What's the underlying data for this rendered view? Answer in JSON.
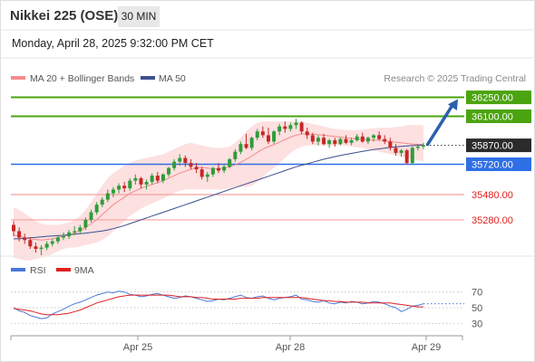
{
  "header": {
    "title": "Nikkei 225 (OSE)",
    "timeframe": "30 MIN",
    "datetime": "Monday, April 28, 2025 9:32:00 PM CET"
  },
  "legend": {
    "ma20_label": "MA 20 + Bollinger Bands",
    "ma50_label": "MA 50",
    "credit": "Research © 2025 Trading Central",
    "rsi_label": "RSI",
    "rsi_ma_label": "9MA"
  },
  "colors": {
    "ma20": "#f28b8b",
    "bands": "#fde0e0",
    "ma50": "#3d4f8f",
    "resistance": "#4ba40f",
    "pivot": "#2f6fe6",
    "support": "#f4a0a0",
    "support_text": "#e0201f",
    "current": "#2b2b2b",
    "bull_candle": "#2e9d3a",
    "bear_candle": "#c62828",
    "arrow": "#2c5fae",
    "rsi": "#4a78d9",
    "rsi_ma": "#e02020"
  },
  "chart_data": [
    {
      "type": "candlestick",
      "title": "Nikkei 225 (OSE)",
      "interval": "30 MIN",
      "x_ticks": [
        "Apr 25",
        "Apr 28",
        "Apr 29"
      ],
      "ylim": [
        35000,
        36340
      ],
      "levels": [
        {
          "label": "36250.00",
          "value": 36250,
          "role": "resistance"
        },
        {
          "label": "36100.00",
          "value": 36100,
          "role": "resistance"
        },
        {
          "label": "35870.00",
          "value": 35870,
          "role": "current"
        },
        {
          "label": "35720.00",
          "value": 35720,
          "role": "pivot"
        },
        {
          "label": "35480.00",
          "value": 35480,
          "role": "support"
        },
        {
          "label": "35280.00",
          "value": 35280,
          "role": "support"
        }
      ],
      "candles": [
        [
          35240,
          35270,
          35150,
          35190
        ],
        [
          35190,
          35220,
          35110,
          35140
        ],
        [
          35140,
          35170,
          35090,
          35120
        ],
        [
          35120,
          35140,
          35050,
          35070
        ],
        [
          35070,
          35100,
          35020,
          35050
        ],
        [
          35050,
          35080,
          35000,
          35060
        ],
        [
          35060,
          35110,
          35040,
          35090
        ],
        [
          35090,
          35130,
          35070,
          35110
        ],
        [
          35110,
          35160,
          35090,
          35140
        ],
        [
          35140,
          35180,
          35120,
          35150
        ],
        [
          35150,
          35200,
          35130,
          35180
        ],
        [
          35180,
          35230,
          35160,
          35190
        ],
        [
          35190,
          35240,
          35170,
          35220
        ],
        [
          35220,
          35300,
          35200,
          35280
        ],
        [
          35280,
          35360,
          35260,
          35340
        ],
        [
          35340,
          35420,
          35320,
          35400
        ],
        [
          35400,
          35460,
          35380,
          35440
        ],
        [
          35440,
          35520,
          35420,
          35490
        ],
        [
          35490,
          35540,
          35460,
          35520
        ],
        [
          35520,
          35570,
          35490,
          35550
        ],
        [
          35550,
          35580,
          35500,
          35530
        ],
        [
          35530,
          35610,
          35510,
          35590
        ],
        [
          35590,
          35640,
          35560,
          35610
        ],
        [
          35610,
          35620,
          35530,
          35560
        ],
        [
          35560,
          35600,
          35520,
          35580
        ],
        [
          35580,
          35650,
          35560,
          35630
        ],
        [
          35630,
          35660,
          35570,
          35590
        ],
        [
          35590,
          35650,
          35570,
          35640
        ],
        [
          35640,
          35700,
          35620,
          35690
        ],
        [
          35690,
          35760,
          35670,
          35740
        ],
        [
          35740,
          35800,
          35710,
          35770
        ],
        [
          35770,
          35790,
          35700,
          35730
        ],
        [
          35730,
          35760,
          35680,
          35700
        ],
        [
          35700,
          35730,
          35650,
          35680
        ],
        [
          35680,
          35700,
          35600,
          35620
        ],
        [
          35620,
          35660,
          35580,
          35640
        ],
        [
          35640,
          35700,
          35620,
          35690
        ],
        [
          35690,
          35730,
          35650,
          35670
        ],
        [
          35670,
          35720,
          35650,
          35700
        ],
        [
          35700,
          35770,
          35690,
          35760
        ],
        [
          35760,
          35840,
          35740,
          35820
        ],
        [
          35820,
          35900,
          35800,
          35880
        ],
        [
          35880,
          35960,
          35840,
          35850
        ],
        [
          35850,
          35940,
          35830,
          35930
        ],
        [
          35930,
          36000,
          35910,
          35980
        ],
        [
          35980,
          36020,
          35930,
          35950
        ],
        [
          35950,
          36010,
          35880,
          35900
        ],
        [
          35900,
          35990,
          35880,
          35980
        ],
        [
          35980,
          36040,
          35950,
          36020
        ],
        [
          36020,
          36060,
          35970,
          36000
        ],
        [
          36000,
          36050,
          35980,
          36030
        ],
        [
          36030,
          36080,
          36000,
          36050
        ],
        [
          36050,
          36060,
          35960,
          35980
        ],
        [
          35980,
          36010,
          35920,
          35950
        ],
        [
          35950,
          35970,
          35880,
          35900
        ],
        [
          35900,
          35950,
          35870,
          35930
        ],
        [
          35930,
          35960,
          35870,
          35880
        ],
        [
          35880,
          35920,
          35850,
          35910
        ],
        [
          35910,
          35930,
          35860,
          35880
        ],
        [
          35880,
          35930,
          35870,
          35920
        ],
        [
          35920,
          35950,
          35880,
          35890
        ],
        [
          35890,
          35930,
          35870,
          35910
        ],
        [
          35910,
          35960,
          35900,
          35940
        ],
        [
          35940,
          35970,
          35890,
          35900
        ],
        [
          35900,
          35940,
          35880,
          35930
        ],
        [
          35930,
          35960,
          35900,
          35950
        ],
        [
          35950,
          35980,
          35910,
          35920
        ],
        [
          35920,
          35950,
          35880,
          35900
        ],
        [
          35900,
          35930,
          35830,
          35850
        ],
        [
          35850,
          35880,
          35790,
          35810
        ],
        [
          35810,
          35840,
          35780,
          35830
        ],
        [
          35830,
          35840,
          35720,
          35730
        ],
        [
          35730,
          35860,
          35720,
          35850
        ],
        [
          35850,
          35880,
          35830,
          35860
        ],
        [
          35860,
          35890,
          35840,
          35870
        ]
      ],
      "ma20": [
        35160,
        35150,
        35140,
        35130,
        35125,
        35120,
        35125,
        35130,
        35140,
        35150,
        35160,
        35175,
        35195,
        35220,
        35250,
        35280,
        35320,
        35360,
        35400,
        35430,
        35460,
        35490,
        35510,
        35530,
        35545,
        35560,
        35575,
        35590,
        35610,
        35630,
        35650,
        35665,
        35680,
        35690,
        35695,
        35690,
        35685,
        35685,
        35690,
        35700,
        35715,
        35735,
        35760,
        35785,
        35815,
        35840,
        35860,
        35875,
        35895,
        35915,
        35935,
        35950,
        35960,
        35960,
        35958,
        35955,
        35950,
        35945,
        35940,
        35935,
        35930,
        35925,
        35920,
        35918,
        35915,
        35912,
        35910,
        35905,
        35900,
        35895,
        35890,
        35885,
        35880,
        35878,
        35876
      ],
      "bands_upper": [
        35380,
        35360,
        35330,
        35300,
        35270,
        35250,
        35240,
        35240,
        35240,
        35250,
        35260,
        35280,
        35310,
        35360,
        35420,
        35490,
        35550,
        35610,
        35650,
        35680,
        35710,
        35730,
        35750,
        35760,
        35770,
        35780,
        35790,
        35800,
        35820,
        35840,
        35860,
        35880,
        35890,
        35880,
        35870,
        35860,
        35850,
        35850,
        35850,
        35860,
        35890,
        35930,
        35980,
        36020,
        36050,
        36060,
        36060,
        36060,
        36060,
        36060,
        36060,
        36060,
        36060,
        36050,
        36040,
        36030,
        36020,
        36010,
        36000,
        35995,
        35990,
        35990,
        35990,
        35995,
        36000,
        36005,
        36010,
        36010,
        36010,
        36015,
        36020,
        36030,
        36030,
        36030,
        36030
      ],
      "bands_lower": [
        34980,
        34970,
        34960,
        34960,
        34970,
        34980,
        34990,
        35010,
        35030,
        35050,
        35060,
        35060,
        35070,
        35080,
        35090,
        35100,
        35120,
        35150,
        35190,
        35230,
        35270,
        35310,
        35340,
        35370,
        35390,
        35410,
        35430,
        35450,
        35470,
        35490,
        35510,
        35520,
        35520,
        35520,
        35520,
        35520,
        35520,
        35520,
        35520,
        35530,
        35540,
        35540,
        35540,
        35550,
        35580,
        35620,
        35660,
        35690,
        35730,
        35770,
        35810,
        35840,
        35860,
        35870,
        35870,
        35870,
        35870,
        35870,
        35870,
        35870,
        35865,
        35860,
        35855,
        35850,
        35840,
        35830,
        35820,
        35810,
        35800,
        35790,
        35780,
        35770,
        35760,
        35750,
        35740
      ],
      "ma50": [
        35130,
        35130,
        35135,
        35138,
        35142,
        35145,
        35150,
        35152,
        35155,
        35158,
        35162,
        35166,
        35170,
        35175,
        35180,
        35186,
        35192,
        35200,
        35210,
        35222,
        35235,
        35250,
        35265,
        35280,
        35295,
        35310,
        35325,
        35340,
        35355,
        35370,
        35385,
        35400,
        35415,
        35430,
        35445,
        35460,
        35475,
        35490,
        35505,
        35520,
        35535,
        35550,
        35565,
        35580,
        35595,
        35610,
        35625,
        35640,
        35655,
        35670,
        35685,
        35700,
        35712,
        35724,
        35736,
        35748,
        35760,
        35770,
        35780,
        35790,
        35798,
        35806,
        35814,
        35822,
        35830,
        35836,
        35842,
        35848,
        35854,
        35858,
        35862,
        35865,
        35868,
        35870,
        35872
      ],
      "projection_arrow": {
        "from_value": 35870,
        "to_value": 36250
      }
    },
    {
      "type": "line",
      "title": "RSI",
      "ylim": [
        20,
        80
      ],
      "y_ticks": [
        70,
        50,
        30
      ],
      "series": [
        {
          "name": "RSI",
          "values": [
            50,
            46,
            44,
            40,
            38,
            36,
            37,
            42,
            45,
            48,
            52,
            55,
            57,
            60,
            63,
            66,
            68,
            70,
            69,
            71,
            70,
            67,
            66,
            64,
            65,
            67,
            68,
            66,
            64,
            62,
            63,
            65,
            64,
            62,
            60,
            58,
            59,
            61,
            60,
            62,
            64,
            66,
            63,
            62,
            64,
            65,
            62,
            60,
            62,
            63,
            64,
            66,
            61,
            60,
            58,
            57,
            59,
            56,
            55,
            57,
            56,
            58,
            57,
            55,
            56,
            58,
            57,
            55,
            52,
            50,
            45,
            48,
            52,
            53,
            55
          ]
        },
        {
          "name": "9MA",
          "values": [
            49,
            48,
            47,
            46,
            44,
            42,
            41,
            41,
            41,
            42,
            43,
            45,
            47,
            50,
            53,
            56,
            58,
            60,
            62,
            64,
            65,
            66,
            66,
            66,
            66,
            66,
            66,
            66,
            66,
            65,
            64,
            64,
            64,
            63,
            63,
            62,
            61,
            61,
            61,
            61,
            61,
            62,
            62,
            62,
            62,
            63,
            63,
            63,
            63,
            63,
            63,
            63,
            63,
            62,
            61,
            60,
            59,
            59,
            58,
            58,
            57,
            57,
            57,
            57,
            56,
            56,
            56,
            56,
            56,
            55,
            54,
            53,
            52,
            51,
            51
          ]
        }
      ]
    }
  ]
}
